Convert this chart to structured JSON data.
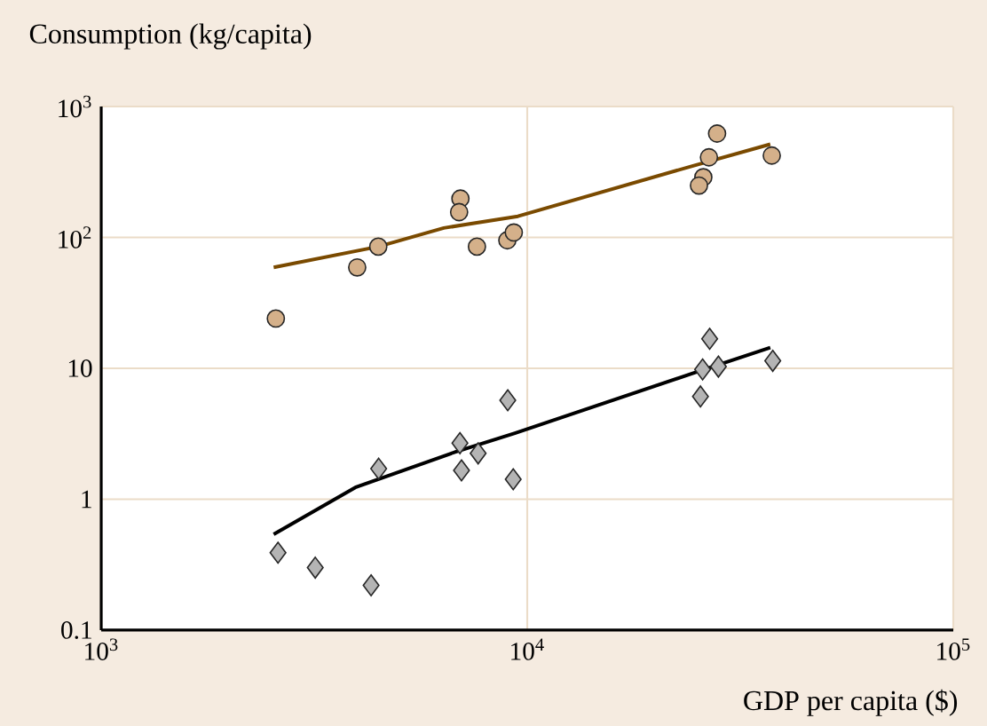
{
  "chart_data": {
    "type": "scatter",
    "xlabel": "GDP per capita ($)",
    "ylabel": "Consumption (kg/capita)",
    "log": "xy",
    "grid": true,
    "xlim": [
      1000,
      100000
    ],
    "ylim": [
      0.1,
      1000
    ],
    "xticks": [
      {
        "value": 1000,
        "label": "10$^{3}$"
      },
      {
        "value": 10000,
        "label": "10$^{4}$"
      },
      {
        "value": 100000,
        "label": "10$^{5}$"
      }
    ],
    "yticks": [
      0.1,
      1,
      10,
      {
        "value": 100,
        "label": "10$^{2}$"
      },
      {
        "value": 1000,
        "label": "10$^{3}$"
      }
    ],
    "series": [
      {
        "marker": "circle",
        "color": "#d4b08a",
        "x": [
          2570,
          3990,
          4470,
          6970,
          6920,
          7620,
          8980,
          9300,
          27900,
          26700,
          25900,
          25300,
          37500
        ],
        "values": [
          24,
          59,
          85,
          198,
          156,
          85,
          95,
          109,
          621,
          409,
          288,
          249,
          422
        ]
      },
      {
        "type": "line",
        "marker": "none",
        "color": "#7a4a00",
        "x": [
          2540,
          4470,
          6370,
          9510,
          24400,
          37200
        ],
        "values": [
          59,
          85,
          118,
          145,
          351,
          515
        ]
      },
      {
        "marker": "diamond",
        "color": "#b4b4b4",
        "x": [
          26800,
          25800,
          28100,
          25500,
          37700,
          9000,
          6950,
          7670,
          7010,
          4480,
          9270,
          2600,
          3180,
          4300
        ],
        "values": [
          16.8,
          9.8,
          10.3,
          6.1,
          11.4,
          5.7,
          2.68,
          2.24,
          1.66,
          1.71,
          1.42,
          0.39,
          0.3,
          0.22
        ]
      },
      {
        "type": "line",
        "marker": "none",
        "color": "#000000",
        "x": [
          2540,
          3950,
          6790,
          9350,
          24800,
          37200
        ],
        "values": [
          0.54,
          1.23,
          2.3,
          3.19,
          9.3,
          14.4
        ]
      }
    ]
  }
}
